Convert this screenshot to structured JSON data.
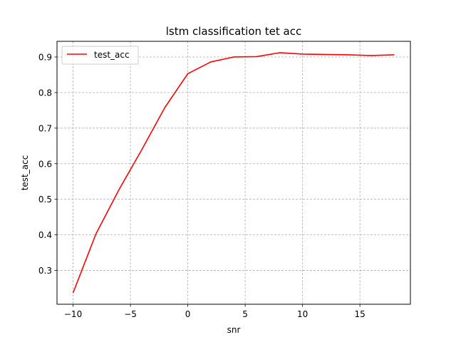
{
  "chart_data": {
    "type": "line",
    "title": "lstm classification tet acc",
    "xlabel": "snr",
    "ylabel": "test_acc",
    "xlim": [
      -11.4,
      19.4
    ],
    "ylim": [
      0.205,
      0.944
    ],
    "x_ticks": [
      -10,
      -5,
      0,
      5,
      10,
      15
    ],
    "y_ticks": [
      0.3,
      0.4,
      0.5,
      0.6,
      0.7,
      0.8,
      0.9
    ],
    "grid": true,
    "grid_style": "dashed",
    "legend_position": "top-left",
    "series": [
      {
        "name": "test_acc",
        "color": "#ff0000",
        "x": [
          -10,
          -8,
          -6,
          -4,
          -2,
          0,
          2,
          4,
          6,
          8,
          10,
          12,
          14,
          16,
          18
        ],
        "y": [
          0.237,
          0.403,
          0.527,
          0.64,
          0.758,
          0.853,
          0.886,
          0.9,
          0.901,
          0.912,
          0.908,
          0.907,
          0.906,
          0.904,
          0.906
        ]
      }
    ]
  }
}
